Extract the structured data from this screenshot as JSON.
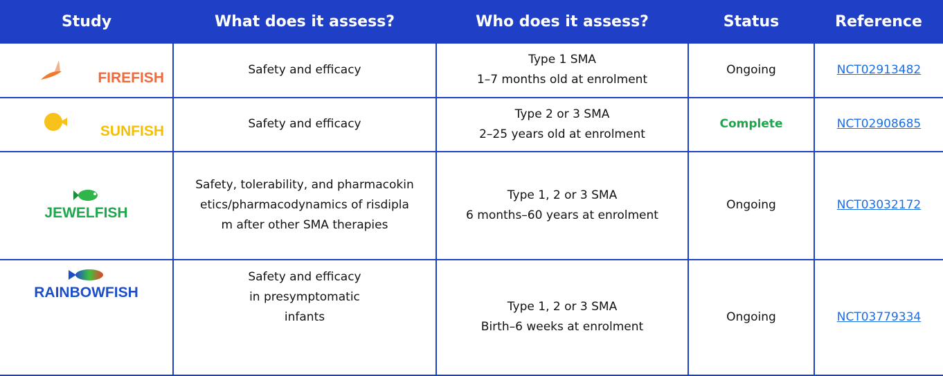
{
  "table": {
    "header": [
      "Study",
      "What does it assess?",
      "Who does it assess?",
      "Status",
      "Reference"
    ],
    "rows": [
      {
        "study": "FIREFISH",
        "what": "Safety and efficacy",
        "who": [
          "Type 1 SMA",
          "1–7 months old at enrolment"
        ],
        "status": "Ongoing",
        "reference": "NCT02913482"
      },
      {
        "study": "SUNFISH",
        "what": "Safety and efficacy",
        "who": [
          "Type 2 or 3 SMA",
          "2–25 years old at enrolment"
        ],
        "status": "Complete",
        "reference": "NCT02908685"
      },
      {
        "study": "JEWELFISH",
        "what": "Safety, tolerability, and pharmacokinetics/pharmacodynamics of risdiplam after other SMA therapies",
        "who": [
          "Type 1, 2 or 3 SMA",
          "6 months–60 years at enrolment"
        ],
        "status": "Ongoing",
        "reference": "NCT03032172"
      },
      {
        "study": "RAINBOWFISH",
        "what": "Safety and efficacy in presymptomatic infants",
        "who": [
          "Type 1, 2 or 3 SMA",
          "Birth–6 weeks at enrolment"
        ],
        "status": "Ongoing",
        "reference": "NCT03779334"
      }
    ]
  }
}
